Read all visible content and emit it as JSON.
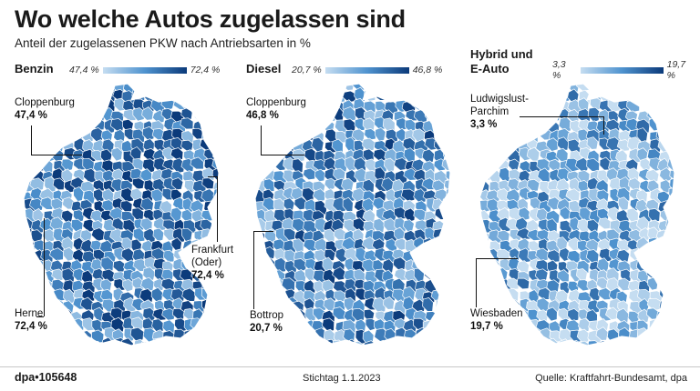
{
  "header": {
    "title": "Wo welche Autos zugelassen sind",
    "subtitle": "Anteil der zugelassenen PKW nach Antriebsarten in %"
  },
  "colors": {
    "low": "#c5ddf1",
    "mid": "#4f93cf",
    "high": "#0b3a7a",
    "border": "#ffffff"
  },
  "panels": [
    {
      "label": "Benzin",
      "legend_min": "47,4 %",
      "legend_max": "72,4 %",
      "callouts": [
        {
          "name": "Cloppenburg",
          "value": "47,4 %"
        },
        {
          "name_line1": "Frankfurt",
          "name_line2": "(Oder)",
          "value": "72,4 %"
        },
        {
          "name": "Herne",
          "value": "72,4 %"
        }
      ]
    },
    {
      "label": "Diesel",
      "legend_min": "20,7 %",
      "legend_max": "46,8 %",
      "callouts": [
        {
          "name": "Cloppenburg",
          "value": "46,8 %"
        },
        {
          "name": "Bottrop",
          "value": "20,7 %"
        }
      ]
    },
    {
      "label_line1": "Hybrid und",
      "label_line2": "E-Auto",
      "legend_min": "3,3 %",
      "legend_max": "19,7 %",
      "callouts": [
        {
          "name_line1": "Ludwigslust-",
          "name_line2": "Parchim",
          "value": "3,3 %"
        },
        {
          "name": "Wiesbaden",
          "value": "19,7 %"
        }
      ]
    }
  ],
  "footer": {
    "agency": "dpa•105648",
    "date": "Stichtag 1.1.2023",
    "source": "Quelle: Kraftfahrt-Bundesamt, dpa"
  }
}
